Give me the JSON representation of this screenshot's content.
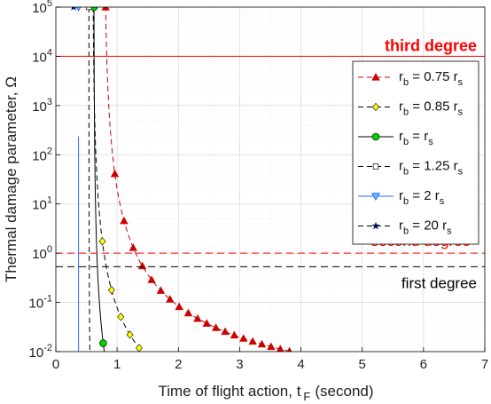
{
  "chart_data": {
    "type": "line",
    "xlabel": "Time of flight action, t",
    "xlabel_sub": "F",
    "xlabel_unit": "(second)",
    "ylabel": "Thermal damage parameter, Ω",
    "xlim": [
      0,
      7
    ],
    "ylim": [
      0.01,
      100000
    ],
    "yscale": "log",
    "xticks": [
      0,
      1,
      2,
      3,
      4,
      5,
      6,
      7
    ],
    "yticks": [
      {
        "value": 0.01,
        "base": "10",
        "exp": "-2"
      },
      {
        "value": 0.1,
        "base": "10",
        "exp": "-1"
      },
      {
        "value": 1,
        "base": "10",
        "exp": "0"
      },
      {
        "value": 10,
        "base": "10",
        "exp": "1"
      },
      {
        "value": 100,
        "base": "10",
        "exp": "2"
      },
      {
        "value": 1000,
        "base": "10",
        "exp": "3"
      },
      {
        "value": 10000,
        "base": "10",
        "exp": "4"
      },
      {
        "value": 100000,
        "base": "10",
        "exp": "5"
      }
    ],
    "grid": true,
    "legend_position": "right",
    "thresholds": [
      {
        "label": "third degree",
        "value": 10000,
        "color": "#ff0000",
        "dash": false
      },
      {
        "label": "second degree",
        "value": 1.0,
        "color": "#ff0000",
        "dash": true
      },
      {
        "label": "first degree",
        "value": 0.53,
        "color": "#000000",
        "dash": true
      }
    ],
    "series": [
      {
        "name": "r",
        "sub": "b",
        "rest": " = 0.75 r",
        "sub2": "s",
        "marker": "triangle-up",
        "color": "#cc0000",
        "line_color": "#cc0000",
        "dash": true,
        "c": 0.5,
        "x0": 0.79
      },
      {
        "name": "r",
        "sub": "b",
        "rest": " = 0.85 r",
        "sub2": "s",
        "marker": "diamond",
        "color": "#ffff00",
        "line_color": "#000000",
        "dash": true,
        "c": 0.27,
        "x0": 0.6
      },
      {
        "name": "r",
        "sub": "b",
        "rest": " = r",
        "sub2": "s",
        "marker": "circle",
        "color": "#00cc00",
        "line_color": "#000000",
        "dash": false,
        "c": 0.0768,
        "x0": 0.62
      },
      {
        "name": "r",
        "sub": "b",
        "rest": " = 1.25 r",
        "sub2": "s",
        "marker": "square",
        "color": "#ffffff",
        "line_color": "#000000",
        "dash": true,
        "c": 0.0085,
        "x0": 0.54
      },
      {
        "name": "r",
        "sub": "b",
        "rest": " = 2 r",
        "sub2": "s",
        "marker": "triangle-down",
        "color": "#66bbff",
        "line_color": "#3366ff",
        "dash": false,
        "c": 0.00053,
        "x0": 0.37
      },
      {
        "name": "r",
        "sub": "b",
        "rest": " = 20 r",
        "sub2": "s",
        "marker": "star",
        "color": "#001155",
        "line_color": "#000000",
        "dash": true,
        "c": 4e-06,
        "x0": 0.29
      }
    ]
  }
}
